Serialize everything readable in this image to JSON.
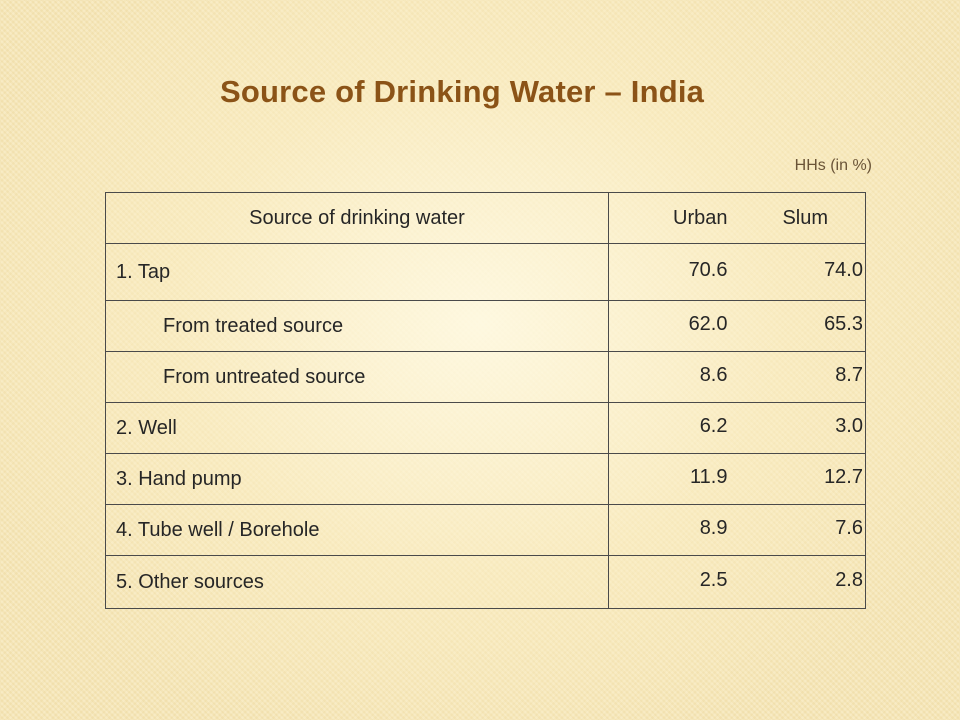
{
  "slide": {
    "title": "Source of Drinking Water – India",
    "unit_note": "HHs (in %)"
  },
  "table": {
    "columns": [
      "Source of drinking water",
      "Urban",
      "Slum"
    ],
    "rows": [
      {
        "source": "1. Tap",
        "urban": "70.6",
        "slum": "74.0"
      },
      {
        "source": "From treated source",
        "urban": "62.0",
        "slum": "65.3"
      },
      {
        "source": "From untreated source",
        "urban": "8.6",
        "slum": "8.7"
      },
      {
        "source": "2. Well",
        "urban": "6.2",
        "slum": "3.0"
      },
      {
        "source": "3. Hand pump",
        "urban": "11.9",
        "slum": "12.7"
      },
      {
        "source": "4. Tube well / Borehole",
        "urban": "8.9",
        "slum": "7.6"
      },
      {
        "source": "5. Other sources",
        "urban": "2.5",
        "slum": "2.8"
      }
    ]
  },
  "colors": {
    "background": "#f6e7b8",
    "title": "#8b5317",
    "text": "#262626",
    "border": "#4a4a4a"
  }
}
